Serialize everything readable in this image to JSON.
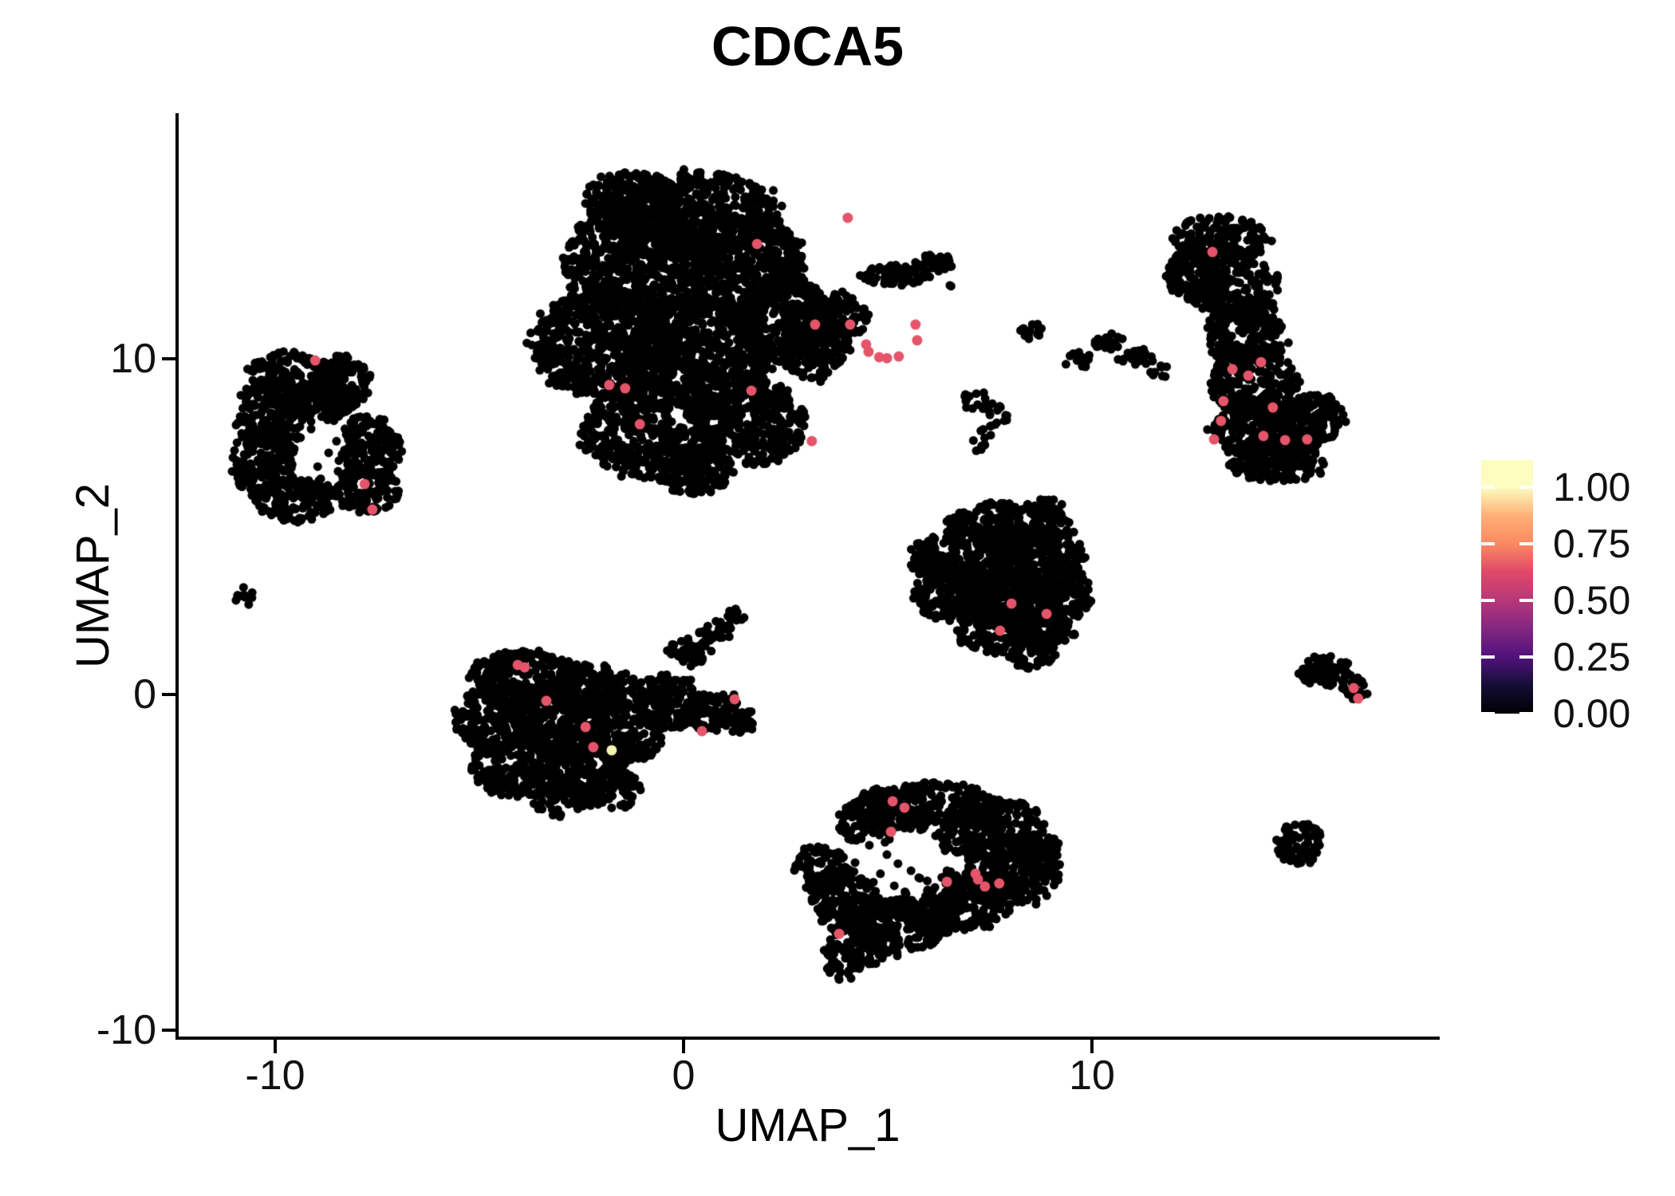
{
  "chart_data": {
    "type": "scatter",
    "title": "CDCA5",
    "xlabel": "UMAP_1",
    "ylabel": "UMAP_2",
    "x_ticks": [
      "-10",
      "0",
      "10"
    ],
    "x_tick_values": [
      -10,
      0,
      10
    ],
    "y_ticks": [
      "-10",
      "0",
      "10"
    ],
    "y_tick_values": [
      -10,
      0,
      10
    ],
    "xlim": [
      -12.4,
      18.5
    ],
    "ylim": [
      -10.25,
      17.3
    ],
    "grid": false,
    "legend_position": "right",
    "point_color": "#000000",
    "expressing_color": "#e4556a",
    "max_expressing_color": "#f4f2b2",
    "colorbar": {
      "tick_labels": [
        "1.00",
        "0.75",
        "0.50",
        "0.25",
        "0.00"
      ],
      "tick_values": [
        1.0,
        0.75,
        0.5,
        0.25,
        0.0
      ],
      "vmax_display": 1.12,
      "colormap": "magma",
      "gradient_stops": [
        {
          "pos": 0,
          "color": "#fcfdbf"
        },
        {
          "pos": 10.7,
          "color": "#fcfdbf"
        },
        {
          "pos": 21.9,
          "color": "#feb078"
        },
        {
          "pos": 33.0,
          "color": "#fc8961"
        },
        {
          "pos": 44.2,
          "color": "#de4968"
        },
        {
          "pos": 55.4,
          "color": "#b73779"
        },
        {
          "pos": 66.5,
          "color": "#822681"
        },
        {
          "pos": 77.7,
          "color": "#51127c"
        },
        {
          "pos": 88.8,
          "color": "#140e36"
        },
        {
          "pos": 100,
          "color": "#000004"
        }
      ]
    },
    "clusters": [
      {
        "name": "top-center-large",
        "blobs": [
          [
            0.25,
            14.27,
            2.15,
            1.31,
            560
          ],
          [
            -1.31,
            14.75,
            1.17,
            0.83,
            190
          ],
          [
            -1.11,
            12.85,
            1.86,
            1.66,
            615
          ],
          [
            1.43,
            12.85,
            1.56,
            1.43,
            445
          ],
          [
            -1.89,
            10.47,
            1.76,
            1.66,
            580
          ],
          [
            0.45,
            10.24,
            1.76,
            1.66,
            580
          ],
          [
            2.4,
            11.19,
            1.17,
            1.31,
            305
          ],
          [
            -0.72,
            7.86,
            1.76,
            1.43,
            500
          ],
          [
            1.62,
            8.1,
            1.37,
            1.31,
            355
          ],
          [
            0.25,
            6.67,
            0.98,
            0.71,
            140
          ],
          [
            3.18,
            10.47,
            0.88,
            1.07,
            185
          ],
          [
            3.87,
            11.31,
            0.68,
            0.71,
            95
          ],
          [
            5.14,
            12.49,
            0.78,
            0.33,
            70
          ],
          [
            6.15,
            12.85,
            0.55,
            0.26,
            35
          ],
          [
            6.58,
            12.26,
            0.14,
            0.12,
            2
          ]
        ],
        "holes": []
      },
      {
        "name": "left-ring",
        "blobs": [
          [
            -9.51,
            9.52,
            1.07,
            0.71,
            150
          ],
          [
            -10.1,
            8.34,
            0.88,
            1.07,
            185
          ],
          [
            -10.29,
            6.91,
            0.78,
            1.07,
            165
          ],
          [
            -9.51,
            5.84,
            0.98,
            0.71,
            140
          ],
          [
            -8.34,
            9.29,
            0.68,
            0.83,
            110
          ],
          [
            -8.93,
            8.69,
            0.88,
            0.59,
            105
          ],
          [
            -7.71,
            7.39,
            0.82,
            0.95,
            155
          ],
          [
            -7.79,
            6.08,
            0.82,
            0.67,
            110
          ]
        ],
        "holes": [
          [
            -8.77,
            7.48,
            0.53,
            0.64
          ]
        ]
      },
      {
        "name": "right-tall",
        "blobs": [
          [
            13.14,
            13.56,
            1.17,
            0.71,
            165
          ],
          [
            12.56,
            12.49,
            0.78,
            0.83,
            130
          ],
          [
            13.5,
            12.09,
            1.07,
            0.95,
            200
          ],
          [
            13.77,
            10.71,
            0.98,
            1.07,
            205
          ],
          [
            13.96,
            9.29,
            1.07,
            1.07,
            225
          ],
          [
            14.32,
            7.86,
            1.37,
            0.95,
            255
          ],
          [
            14.51,
            6.91,
            1.17,
            0.59,
            140
          ],
          [
            15.39,
            8.22,
            0.78,
            0.76,
            115
          ]
        ],
        "holes": []
      },
      {
        "name": "middle-triangle",
        "blobs": [
          [
            7.97,
            5.01,
            1.56,
            0.71,
            220
          ],
          [
            7.09,
            4.06,
            1.37,
            0.95,
            255
          ],
          [
            8.65,
            4.06,
            1.17,
            0.95,
            220
          ],
          [
            6.7,
            2.99,
            1.07,
            0.83,
            175
          ],
          [
            8.07,
            2.87,
            1.17,
            0.95,
            220
          ],
          [
            9.24,
            2.99,
            0.78,
            0.83,
            130
          ],
          [
            7.68,
            1.88,
            0.98,
            0.67,
            130
          ],
          [
            8.85,
            1.92,
            0.78,
            0.62,
            95
          ],
          [
            8.5,
            1.16,
            0.55,
            0.38,
            40
          ],
          [
            5.92,
            4.06,
            0.39,
            0.59,
            45
          ],
          [
            8.85,
            5.58,
            0.49,
            0.33,
            32
          ]
        ],
        "holes": []
      },
      {
        "name": "bottom-left",
        "blobs": [
          [
            -3.85,
            0.5,
            1.37,
            0.83,
            225
          ],
          [
            -4.63,
            -0.69,
            0.98,
            1.07,
            205
          ],
          [
            -3.07,
            -0.69,
            1.17,
            1.07,
            245
          ],
          [
            -4.04,
            -2.11,
            1.17,
            0.95,
            220
          ],
          [
            -2.48,
            -2.11,
            1.07,
            0.95,
            200
          ],
          [
            -1.5,
            -1.16,
            0.98,
            0.95,
            180
          ],
          [
            -2.97,
            -3.06,
            0.78,
            0.59,
            90
          ],
          [
            -1.7,
            -2.83,
            0.68,
            0.59,
            80
          ],
          [
            -2.29,
            0.21,
            1.17,
            0.71,
            165
          ],
          [
            -0.33,
            -0.21,
            0.88,
            0.83,
            145
          ],
          [
            0.64,
            -0.5,
            0.78,
            0.62,
            95
          ],
          [
            1.39,
            -0.76,
            0.43,
            0.38,
            32
          ],
          [
            0.06,
            1.26,
            0.55,
            0.43,
            46
          ],
          [
            0.8,
            1.88,
            0.43,
            0.31,
            26
          ],
          [
            1.27,
            2.4,
            0.25,
            0.21,
            11
          ]
        ],
        "holes": []
      },
      {
        "name": "bottom-center",
        "blobs": [
          [
            5.92,
            -3.3,
            1.76,
            0.71,
            245
          ],
          [
            7.48,
            -4.01,
            1.37,
            0.95,
            255
          ],
          [
            8.07,
            -5.2,
            1.17,
            1.07,
            245
          ],
          [
            6.7,
            -6.15,
            1.37,
            0.95,
            255
          ],
          [
            5.14,
            -6.86,
            1.37,
            0.83,
            225
          ],
          [
            3.97,
            -6.15,
            0.88,
            0.95,
            165
          ],
          [
            3.38,
            -5.2,
            0.68,
            0.71,
            95
          ],
          [
            4.75,
            -3.78,
            0.98,
            0.71,
            140
          ],
          [
            4.2,
            -7.62,
            0.78,
            0.57,
            85
          ],
          [
            3.87,
            -8.17,
            0.39,
            0.33,
            25
          ],
          [
            8.65,
            -4.73,
            0.59,
            0.71,
            80
          ]
        ],
        "holes": [
          [
            5.33,
            -5.08,
            1.07,
            0.95
          ]
        ]
      },
      {
        "name": "right-arrow-small",
        "blobs": [
          [
            15.68,
            0.86,
            0.68,
            0.29,
            38
          ],
          [
            16.11,
            0.5,
            0.55,
            0.31,
            33
          ],
          [
            16.46,
            0.12,
            0.35,
            0.26,
            18
          ],
          [
            15.35,
            0.59,
            0.31,
            0.26,
            16
          ]
        ],
        "holes": []
      },
      {
        "name": "bottom-right-round",
        "blobs": [
          [
            15.06,
            -4.44,
            0.59,
            0.67,
            76
          ]
        ],
        "holes": []
      },
      {
        "name": "far-left-tiny",
        "blobs": [
          [
            -10.76,
            2.95,
            0.23,
            0.31,
            12
          ]
        ],
        "holes": []
      },
      {
        "name": "mid-small-blob",
        "blobs": [
          [
            8.52,
            10.81,
            0.31,
            0.26,
            16
          ]
        ],
        "holes": []
      },
      {
        "name": "mid-streak",
        "blobs": [
          [
            9.67,
            9.95,
            0.39,
            0.24,
            18
          ],
          [
            10.41,
            10.52,
            0.39,
            0.24,
            18
          ],
          [
            11.09,
            10.05,
            0.47,
            0.26,
            24
          ],
          [
            11.7,
            9.62,
            0.27,
            0.19,
            10
          ]
        ],
        "holes": []
      },
      {
        "name": "mid-scatter",
        "blobs": [
          [
            7.19,
            8.69,
            0.49,
            0.36,
            17
          ],
          [
            7.81,
            8.34,
            0.35,
            0.29,
            10
          ],
          [
            7.52,
            7.86,
            0.27,
            0.21,
            6
          ],
          [
            7.25,
            7.46,
            0.31,
            0.21,
            7
          ]
        ],
        "holes": []
      }
    ],
    "sparse_points": [
      [
        -9.12,
        7.91
      ],
      [
        -9.38,
        7.65
      ],
      [
        -8.69,
        7.2
      ],
      [
        -8.96,
        6.79
      ],
      [
        -8.46,
        6.65
      ],
      [
        4.55,
        -4.49
      ],
      [
        4.98,
        -4.77
      ],
      [
        5.25,
        -5.04
      ],
      [
        5.57,
        -5.25
      ],
      [
        4.82,
        -5.34
      ],
      [
        4.47,
        -5.58
      ],
      [
        5.16,
        -5.7
      ],
      [
        5.76,
        -5.46
      ],
      [
        5.45,
        -5.94
      ],
      [
        4.67,
        -6.06
      ],
      [
        5.98,
        -5.82
      ],
      [
        4.2,
        -5.01
      ]
    ],
    "expressing_cells": [
      [
        4.02,
        14.2,
        0.65
      ],
      [
        1.8,
        13.42,
        0.65
      ],
      [
        3.22,
        11.02,
        0.65
      ],
      [
        4.08,
        11.02,
        0.65
      ],
      [
        5.68,
        11.02,
        0.65
      ],
      [
        5.72,
        10.55,
        0.65
      ],
      [
        4.47,
        10.43,
        0.65
      ],
      [
        4.53,
        10.21,
        0.65
      ],
      [
        4.79,
        10.05,
        0.65
      ],
      [
        4.98,
        10.02,
        0.65
      ],
      [
        5.27,
        10.07,
        0.65
      ],
      [
        -1.82,
        9.22,
        0.65
      ],
      [
        -1.43,
        9.12,
        0.65
      ],
      [
        1.66,
        9.05,
        0.65
      ],
      [
        -1.07,
        8.05,
        0.65
      ],
      [
        3.14,
        7.55,
        0.65
      ],
      [
        -9.02,
        9.95,
        0.65
      ],
      [
        -7.81,
        6.27,
        0.65
      ],
      [
        -7.62,
        5.51,
        0.65
      ],
      [
        12.95,
        13.18,
        0.65
      ],
      [
        14.14,
        9.9,
        0.65
      ],
      [
        13.44,
        9.69,
        0.65
      ],
      [
        13.83,
        9.5,
        0.65
      ],
      [
        13.22,
        8.74,
        0.65
      ],
      [
        14.43,
        8.55,
        0.65
      ],
      [
        13.16,
        8.15,
        0.65
      ],
      [
        12.99,
        7.6,
        0.65
      ],
      [
        14.2,
        7.7,
        0.65
      ],
      [
        14.73,
        7.58,
        0.65
      ],
      [
        15.27,
        7.6,
        0.65
      ],
      [
        8.03,
        2.71,
        0.65
      ],
      [
        8.89,
        2.4,
        0.65
      ],
      [
        7.75,
        1.9,
        0.65
      ],
      [
        -4.06,
        0.88,
        0.65
      ],
      [
        -3.89,
        0.81,
        0.65
      ],
      [
        -3.36,
        -0.19,
        0.65
      ],
      [
        -2.4,
        -0.97,
        0.65
      ],
      [
        -2.21,
        -1.57,
        0.65
      ],
      [
        -1.76,
        -1.66,
        1.0
      ],
      [
        0.45,
        -1.09,
        0.65
      ],
      [
        1.25,
        -0.14,
        0.65
      ],
      [
        5.12,
        -3.18,
        0.65
      ],
      [
        5.41,
        -3.37,
        0.65
      ],
      [
        5.08,
        -4.09,
        0.65
      ],
      [
        6.45,
        -5.58,
        0.65
      ],
      [
        7.15,
        -5.34,
        0.65
      ],
      [
        7.21,
        -5.51,
        0.65
      ],
      [
        7.38,
        -5.72,
        0.65
      ],
      [
        7.73,
        -5.63,
        0.65
      ],
      [
        3.81,
        -7.13,
        0.65
      ],
      [
        16.41,
        0.19,
        0.65
      ],
      [
        16.52,
        -0.12,
        0.65
      ]
    ]
  }
}
